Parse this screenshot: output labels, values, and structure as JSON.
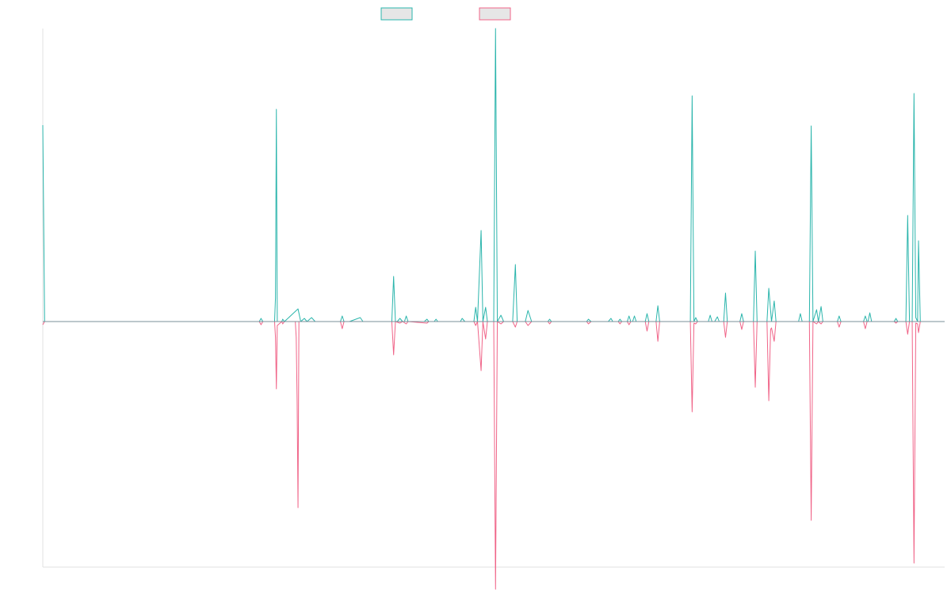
{
  "colors": {
    "series_positive": "#2bb5ac",
    "series_negative": "#f06488",
    "legend_fill": "#e6e6e6",
    "axis": "#e0e0e0"
  },
  "chart_data": {
    "type": "line",
    "title": "",
    "xlabel": "",
    "ylabel": "",
    "grid": false,
    "legend": "top-center",
    "x_range": [
      0,
      1000
    ],
    "ylim": [
      -310,
      370
    ],
    "baseline": 0,
    "series": [
      {
        "color": "#2bb5ac",
        "points": [
          [
            0,
            248
          ],
          [
            2,
            0
          ],
          [
            165,
            0
          ],
          [
            240,
            0
          ],
          [
            242,
            4
          ],
          [
            244,
            0
          ],
          [
            257,
            0
          ],
          [
            258,
            30
          ],
          [
            259,
            268
          ],
          [
            260,
            0
          ],
          [
            265,
            0
          ],
          [
            266,
            3
          ],
          [
            268,
            0
          ],
          [
            283,
            16
          ],
          [
            286,
            0
          ],
          [
            290,
            4
          ],
          [
            293,
            0
          ],
          [
            298,
            5
          ],
          [
            302,
            0
          ],
          [
            330,
            0
          ],
          [
            332,
            7
          ],
          [
            334,
            0
          ],
          [
            340,
            0
          ],
          [
            352,
            5
          ],
          [
            355,
            0
          ],
          [
            370,
            0
          ],
          [
            387,
            0
          ],
          [
            389,
            57
          ],
          [
            391,
            0
          ],
          [
            393,
            0
          ],
          [
            396,
            4
          ],
          [
            399,
            0
          ],
          [
            401,
            0
          ],
          [
            403,
            7
          ],
          [
            405,
            0
          ],
          [
            423,
            0
          ],
          [
            426,
            3
          ],
          [
            428,
            0
          ],
          [
            434,
            0
          ],
          [
            436,
            3
          ],
          [
            438,
            0
          ],
          [
            463,
            0
          ],
          [
            465,
            4
          ],
          [
            468,
            0
          ],
          [
            478,
            0
          ],
          [
            480,
            18
          ],
          [
            482,
            0
          ],
          [
            486,
            115
          ],
          [
            488,
            0
          ],
          [
            491,
            18
          ],
          [
            493,
            0
          ],
          [
            500,
            0
          ],
          [
            502,
            370
          ],
          [
            504,
            0
          ],
          [
            508,
            8
          ],
          [
            511,
            0
          ],
          [
            521,
            0
          ],
          [
            524,
            72
          ],
          [
            526,
            0
          ],
          [
            535,
            0
          ],
          [
            538,
            14
          ],
          [
            542,
            0
          ],
          [
            560,
            0
          ],
          [
            562,
            3
          ],
          [
            564,
            0
          ],
          [
            578,
            0
          ],
          [
            582,
            0
          ],
          [
            603,
            0
          ],
          [
            605,
            3
          ],
          [
            608,
            0
          ],
          [
            627,
            0
          ],
          [
            630,
            4
          ],
          [
            632,
            0
          ],
          [
            638,
            0
          ],
          [
            640,
            3
          ],
          [
            642,
            0
          ],
          [
            648,
            0
          ],
          [
            650,
            7
          ],
          [
            652,
            0
          ],
          [
            654,
            0
          ],
          [
            656,
            7
          ],
          [
            658,
            0
          ],
          [
            668,
            0
          ],
          [
            670,
            10
          ],
          [
            672,
            0
          ],
          [
            680,
            0
          ],
          [
            682,
            20
          ],
          [
            684,
            0
          ],
          [
            718,
            0
          ],
          [
            720,
            285
          ],
          [
            722,
            0
          ],
          [
            724,
            5
          ],
          [
            726,
            0
          ],
          [
            738,
            0
          ],
          [
            740,
            8
          ],
          [
            742,
            0
          ],
          [
            745,
            0
          ],
          [
            748,
            6
          ],
          [
            750,
            0
          ],
          [
            755,
            0
          ],
          [
            757,
            36
          ],
          [
            759,
            0
          ],
          [
            773,
            0
          ],
          [
            775,
            10
          ],
          [
            777,
            0
          ],
          [
            788,
            0
          ],
          [
            790,
            89
          ],
          [
            792,
            0
          ],
          [
            803,
            0
          ],
          [
            805,
            42
          ],
          [
            808,
            0
          ],
          [
            811,
            26
          ],
          [
            813,
            0
          ],
          [
            838,
            0
          ],
          [
            840,
            10
          ],
          [
            842,
            0
          ],
          [
            850,
            0
          ],
          [
            852,
            247
          ],
          [
            854,
            0
          ],
          [
            858,
            15
          ],
          [
            860,
            0
          ],
          [
            863,
            19
          ],
          [
            865,
            0
          ],
          [
            881,
            0
          ],
          [
            883,
            7
          ],
          [
            885,
            0
          ],
          [
            910,
            0
          ],
          [
            912,
            7
          ],
          [
            914,
            0
          ],
          [
            915,
            0
          ],
          [
            917,
            11
          ],
          [
            919,
            0
          ],
          [
            944,
            0
          ],
          [
            946,
            4
          ],
          [
            948,
            0
          ],
          [
            957,
            0
          ],
          [
            959,
            134
          ],
          [
            961,
            0
          ],
          [
            963,
            0
          ],
          [
            964,
            0
          ],
          [
            966,
            288
          ],
          [
            968,
            5
          ],
          [
            970,
            0
          ],
          [
            971,
            102
          ],
          [
            973,
            0
          ],
          [
            1000,
            0
          ]
        ]
      },
      {
        "color": "#f06488",
        "points": [
          [
            0,
            -4
          ],
          [
            2,
            0
          ],
          [
            165,
            0
          ],
          [
            240,
            0
          ],
          [
            242,
            -4
          ],
          [
            244,
            0
          ],
          [
            257,
            0
          ],
          [
            258,
            -20
          ],
          [
            259,
            -85
          ],
          [
            260,
            -5
          ],
          [
            265,
            0
          ],
          [
            266,
            -3
          ],
          [
            268,
            0
          ],
          [
            280,
            0
          ],
          [
            281,
            -20
          ],
          [
            282,
            -100
          ],
          [
            283,
            -235
          ],
          [
            284,
            0
          ],
          [
            290,
            0
          ],
          [
            330,
            0
          ],
          [
            332,
            -9
          ],
          [
            334,
            0
          ],
          [
            370,
            0
          ],
          [
            387,
            0
          ],
          [
            389,
            -42
          ],
          [
            391,
            0
          ],
          [
            396,
            -2
          ],
          [
            399,
            0
          ],
          [
            403,
            -3
          ],
          [
            405,
            0
          ],
          [
            426,
            -2
          ],
          [
            428,
            0
          ],
          [
            478,
            0
          ],
          [
            480,
            -5
          ],
          [
            482,
            0
          ],
          [
            486,
            -62
          ],
          [
            488,
            0
          ],
          [
            491,
            -22
          ],
          [
            493,
            0
          ],
          [
            500,
            0
          ],
          [
            502,
            -338
          ],
          [
            504,
            0
          ],
          [
            508,
            -3
          ],
          [
            511,
            0
          ],
          [
            521,
            0
          ],
          [
            524,
            -7
          ],
          [
            526,
            0
          ],
          [
            535,
            0
          ],
          [
            538,
            -5
          ],
          [
            542,
            0
          ],
          [
            560,
            0
          ],
          [
            562,
            -3
          ],
          [
            564,
            0
          ],
          [
            603,
            0
          ],
          [
            605,
            -3
          ],
          [
            608,
            0
          ],
          [
            638,
            0
          ],
          [
            640,
            -3
          ],
          [
            642,
            0
          ],
          [
            648,
            0
          ],
          [
            650,
            -4
          ],
          [
            652,
            0
          ],
          [
            668,
            0
          ],
          [
            670,
            -12
          ],
          [
            672,
            0
          ],
          [
            680,
            0
          ],
          [
            682,
            -25
          ],
          [
            684,
            0
          ],
          [
            718,
            0
          ],
          [
            720,
            -114
          ],
          [
            722,
            -2
          ],
          [
            724,
            -3
          ],
          [
            726,
            0
          ],
          [
            755,
            0
          ],
          [
            757,
            -20
          ],
          [
            759,
            0
          ],
          [
            773,
            0
          ],
          [
            775,
            -10
          ],
          [
            777,
            0
          ],
          [
            788,
            0
          ],
          [
            790,
            -83
          ],
          [
            792,
            0
          ],
          [
            803,
            0
          ],
          [
            805,
            -100
          ],
          [
            807,
            -10
          ],
          [
            808,
            -8
          ],
          [
            811,
            -25
          ],
          [
            813,
            0
          ],
          [
            850,
            0
          ],
          [
            852,
            -251
          ],
          [
            854,
            0
          ],
          [
            858,
            -3
          ],
          [
            860,
            0
          ],
          [
            863,
            -3
          ],
          [
            865,
            0
          ],
          [
            881,
            0
          ],
          [
            883,
            -7
          ],
          [
            885,
            0
          ],
          [
            910,
            0
          ],
          [
            912,
            -9
          ],
          [
            914,
            0
          ],
          [
            944,
            0
          ],
          [
            946,
            -2
          ],
          [
            948,
            0
          ],
          [
            957,
            0
          ],
          [
            959,
            -16
          ],
          [
            961,
            0
          ],
          [
            964,
            0
          ],
          [
            966,
            -305
          ],
          [
            968,
            -2
          ],
          [
            970,
            -3
          ],
          [
            971,
            -14
          ],
          [
            973,
            0
          ],
          [
            1000,
            0
          ]
        ]
      }
    ]
  }
}
